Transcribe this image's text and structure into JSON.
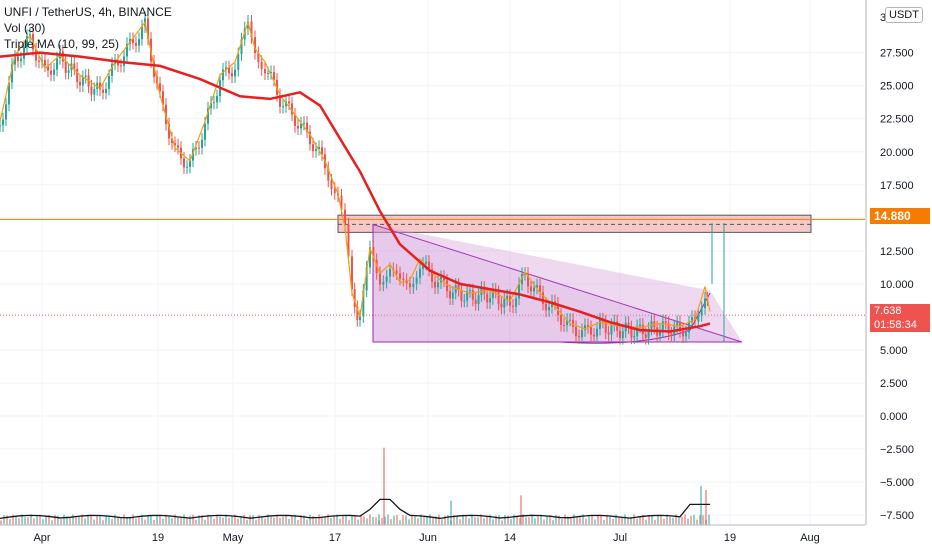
{
  "legend": {
    "symbol": "UNFI / TetherUS, 4h, BINANCE",
    "vol": "Vol (30)",
    "ma": "Triple MA (10, 99, 25)"
  },
  "currency": "USDT",
  "chart_data": {
    "type": "candlestick",
    "y_ticks": [
      "27.500",
      "25.000",
      "22.500",
      "20.000",
      "17.500",
      "15.000",
      "12.500",
      "10.000",
      "7.500",
      "5.000",
      "2.500",
      "0.000",
      "−2.500",
      "−5.000",
      "−7.500"
    ],
    "y_tick_values": [
      27.5,
      25,
      22.5,
      20,
      17.5,
      15,
      12.5,
      10,
      7.5,
      5,
      2.5,
      0,
      -2.5,
      -5,
      -7.5
    ],
    "y_top_label": "3",
    "ylim": [
      -8.2,
      30.2
    ],
    "x_ticks": [
      "Apr",
      "19",
      "May",
      "17",
      "Jun",
      "14",
      "Jul",
      "19",
      "Aug"
    ],
    "price_series": {
      "x": [
        0,
        15,
        30,
        45,
        60,
        80,
        100,
        115,
        130,
        145,
        160,
        175,
        190,
        205,
        220,
        235,
        248,
        255,
        265,
        280,
        295,
        310,
        325,
        338,
        345,
        352,
        360,
        370,
        380,
        390,
        400,
        410,
        420,
        435,
        450,
        470,
        490,
        510,
        525,
        540,
        555,
        570,
        585,
        600,
        620,
        640,
        660,
        680,
        695,
        705,
        710
      ],
      "close": [
        22,
        27,
        28.5,
        26,
        27,
        25.5,
        24.5,
        26.5,
        28,
        29.5,
        24,
        20,
        19,
        22,
        25.5,
        26.5,
        29.5,
        27.5,
        26.5,
        24,
        22.5,
        21,
        19,
        16.5,
        14,
        9,
        7.2,
        12.4,
        10.5,
        11.2,
        9.8,
        10,
        11.6,
        10.3,
        9.5,
        9,
        9.2,
        8.4,
        10.6,
        9,
        8,
        6.7,
        6.3,
        6.8,
        6.5,
        6.4,
        6.7,
        6.5,
        7,
        9.5,
        7.6
      ]
    },
    "ma_long": {
      "x": [
        0,
        40,
        80,
        120,
        160,
        200,
        240,
        270,
        300,
        320,
        340,
        360,
        380,
        400,
        430,
        460,
        490,
        520,
        550,
        580,
        610,
        640,
        670,
        700,
        710
      ],
      "y": [
        27.2,
        27.5,
        27.2,
        26.8,
        26.5,
        25.5,
        24.2,
        24,
        24.5,
        23.5,
        21,
        18.5,
        15.5,
        13,
        11,
        10,
        9.6,
        9.2,
        8.6,
        7.9,
        7.1,
        6.5,
        6.4,
        6.8,
        7
      ]
    },
    "horizontal_level": 14.88,
    "last_price": 7.638,
    "last_price_label": "7.638",
    "horizontal_label": "14.880",
    "countdown": "01:58:34",
    "resistance_zone": [
      13.9,
      15.2
    ],
    "triangle": {
      "x": [
        373,
        373,
        742
      ],
      "y": [
        14.5,
        5.6,
        5.6
      ]
    },
    "volume_spike_positions": [
      378,
      383,
      450,
      520,
      700,
      705
    ],
    "volume_spike_heights": [
      -7.9,
      -2.4,
      -6.4,
      -6.0,
      -5.3,
      -5.6
    ]
  },
  "colors": {
    "up": "#26a69a",
    "down": "#ef5350",
    "ma_long": "#e91e1e",
    "ma_short": "#f59d0f",
    "level": "#f57c00",
    "zone": "#ef9a9a",
    "triangle": "#ce93d8"
  }
}
